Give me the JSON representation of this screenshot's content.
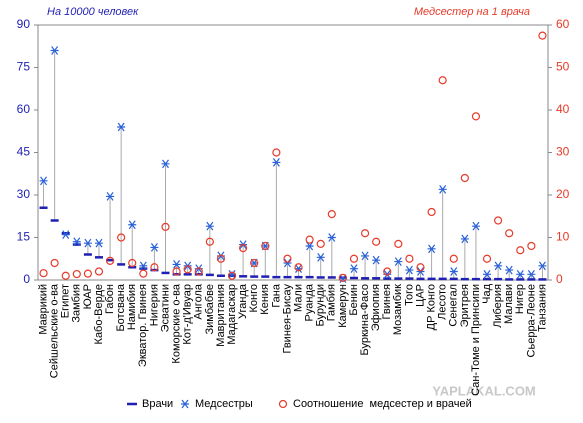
{
  "chart_data": {
    "type": "dual-axis-points",
    "left_title": "На 10000 человек",
    "right_title": "Медсестер на 1 врача",
    "categories": [
      "Маврикий",
      "Сейшельские о-ва",
      "Египет",
      "Замбия",
      "ЮАР",
      "Кабо-Верде",
      "Габон",
      "Ботсвана",
      "Намибия",
      "Экватор. Гвинея",
      "Нигерия",
      "Эсватини",
      "Коморские о-ва",
      "Кот-д'Ивуар",
      "Ангола",
      "Зимбабве",
      "Мавритания",
      "Мадагаскар",
      "Уганда",
      "Конго",
      "Кения",
      "Гана",
      "Гвинея-Бисау",
      "Мали",
      "Руанда",
      "Бурунди",
      "Гамбия",
      "Камерун",
      "Бенин",
      "Буркина-Фасо",
      "Эфиопия",
      "Гвинея",
      "Мозамбик",
      "Того",
      "ЦАР",
      "ДР Конго",
      "Лесото",
      "Сенегал",
      "Эритрея",
      "Сан-Томе и Принсипи",
      "Чад",
      "Либерия",
      "Малави",
      "Нигер",
      "Сьерра-Леоне",
      "Танзания"
    ],
    "series": [
      {
        "name": "Врачи",
        "color": "#1f1fb4",
        "marker": "dash",
        "axis": "y",
        "values": [
          25.5,
          21,
          16.5,
          12.5,
          9,
          8,
          7,
          5.5,
          4.5,
          4,
          3.5,
          2.5,
          2,
          2,
          2,
          1.8,
          1.5,
          1.5,
          1.3,
          1.2,
          1.2,
          1,
          1,
          1,
          1,
          0.9,
          0.9,
          0.8,
          0.7,
          0.6,
          0.6,
          0.5,
          0.5,
          0.5,
          0.4,
          0.4,
          0.4,
          0.4,
          0.3,
          0.3,
          0.3,
          0.3,
          0.2,
          0.2,
          0.2,
          0.2
        ]
      },
      {
        "name": "Медсестры",
        "color": "#2a62d8",
        "marker": "asterisk",
        "axis": "y",
        "values": [
          35,
          81,
          16,
          13.5,
          13,
          13,
          29.5,
          54,
          19.5,
          5,
          11.5,
          41,
          5.5,
          5,
          4,
          19,
          8.5,
          2,
          12.5,
          6,
          12,
          41.5,
          6,
          4,
          12,
          8,
          15,
          0.5,
          4,
          8.5,
          7,
          2,
          6.5,
          3.5,
          3,
          11,
          32,
          3,
          14.5,
          19,
          2,
          5,
          3.5,
          2,
          2,
          5
        ]
      },
      {
        "name": "Соотношение  медсестер и врачей",
        "color": "#e83a2a",
        "marker": "circle",
        "axis": "y2",
        "values": [
          1.6,
          4,
          1,
          1.4,
          1.5,
          2,
          4.5,
          10,
          4,
          1.5,
          3,
          12.5,
          2,
          2.5,
          2,
          9,
          5,
          1,
          7.5,
          4,
          8,
          30,
          5,
          3,
          9.5,
          8.5,
          15.5,
          0.5,
          5,
          11,
          9,
          2,
          8.5,
          5,
          3,
          16,
          47,
          5,
          24,
          38.5,
          5,
          14,
          11,
          7,
          8,
          57.5
        ]
      }
    ],
    "ylim": [
      0,
      90
    ],
    "yticks": [
      0,
      15,
      30,
      45,
      60,
      75,
      90
    ],
    "ytick_color": "#1f1fb4",
    "y2lim": [
      0,
      60
    ],
    "y2ticks": [
      0,
      10,
      20,
      30,
      40,
      50,
      60
    ],
    "y2tick_color": "#e83a2a",
    "drop_lines": true,
    "watermark": "YAPLAKAL.COM"
  }
}
